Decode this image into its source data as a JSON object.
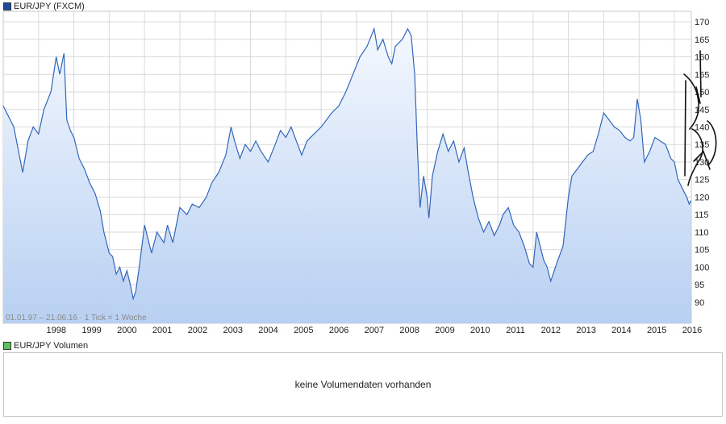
{
  "colors": {
    "series_line": "#3366bb",
    "area_top": "#f4f8fe",
    "area_bottom": "#b8d0f2",
    "grid": "#d9d9d9",
    "price_swatch": "#1f4c9c",
    "volume_swatch": "#5fbf5f"
  },
  "legend": {
    "price": "EUR/JPY (FXCM)",
    "volume": "EUR/JPY Volumen"
  },
  "range_label": "01.01.97 – 21.06.16 · 1 Tick = 1 Woche",
  "volume": {
    "message": "keine Volumendaten vorhanden"
  },
  "chart_data": {
    "type": "area",
    "title": "",
    "xlabel": "",
    "ylabel": "",
    "series": [
      {
        "name": "EUR/JPY (FXCM)",
        "points": [
          [
            1997.0,
            146
          ],
          [
            1997.3,
            140
          ],
          [
            1997.55,
            127
          ],
          [
            1997.7,
            136
          ],
          [
            1997.85,
            140
          ],
          [
            1998.0,
            138
          ],
          [
            1998.15,
            145
          ],
          [
            1998.35,
            150
          ],
          [
            1998.5,
            160
          ],
          [
            1998.6,
            155
          ],
          [
            1998.72,
            161
          ],
          [
            1998.8,
            142
          ],
          [
            1998.9,
            139
          ],
          [
            1999.0,
            137
          ],
          [
            1999.15,
            131
          ],
          [
            1999.3,
            128
          ],
          [
            1999.45,
            124
          ],
          [
            1999.6,
            121
          ],
          [
            1999.75,
            116
          ],
          [
            1999.85,
            110
          ],
          [
            2000.0,
            104
          ],
          [
            2000.1,
            103
          ],
          [
            2000.2,
            98
          ],
          [
            2000.3,
            100
          ],
          [
            2000.4,
            96
          ],
          [
            2000.5,
            99
          ],
          [
            2000.6,
            95
          ],
          [
            2000.68,
            91
          ],
          [
            2000.75,
            93
          ],
          [
            2000.85,
            100
          ],
          [
            2001.0,
            112
          ],
          [
            2001.1,
            108
          ],
          [
            2001.2,
            104
          ],
          [
            2001.35,
            110
          ],
          [
            2001.55,
            107
          ],
          [
            2001.65,
            112
          ],
          [
            2001.8,
            107
          ],
          [
            2002.0,
            117
          ],
          [
            2002.2,
            115
          ],
          [
            2002.35,
            118
          ],
          [
            2002.55,
            117
          ],
          [
            2002.75,
            120
          ],
          [
            2002.9,
            124
          ],
          [
            2003.1,
            127
          ],
          [
            2003.3,
            132
          ],
          [
            2003.45,
            140
          ],
          [
            2003.55,
            136
          ],
          [
            2003.7,
            131
          ],
          [
            2003.85,
            135
          ],
          [
            2004.0,
            133
          ],
          [
            2004.15,
            136
          ],
          [
            2004.3,
            133
          ],
          [
            2004.5,
            130
          ],
          [
            2004.7,
            135
          ],
          [
            2004.85,
            139
          ],
          [
            2005.0,
            137
          ],
          [
            2005.15,
            140
          ],
          [
            2005.3,
            136
          ],
          [
            2005.45,
            132
          ],
          [
            2005.6,
            136
          ],
          [
            2005.8,
            138
          ],
          [
            2006.0,
            140
          ],
          [
            2006.15,
            142
          ],
          [
            2006.3,
            144
          ],
          [
            2006.5,
            146
          ],
          [
            2006.7,
            150
          ],
          [
            2006.9,
            155
          ],
          [
            2007.1,
            160
          ],
          [
            2007.3,
            163
          ],
          [
            2007.5,
            168
          ],
          [
            2007.6,
            162
          ],
          [
            2007.75,
            165
          ],
          [
            2007.9,
            160
          ],
          [
            2008.0,
            158
          ],
          [
            2008.1,
            163
          ],
          [
            2008.3,
            165
          ],
          [
            2008.45,
            168
          ],
          [
            2008.55,
            166
          ],
          [
            2008.65,
            155
          ],
          [
            2008.72,
            135
          ],
          [
            2008.8,
            117
          ],
          [
            2008.9,
            126
          ],
          [
            2009.0,
            120
          ],
          [
            2009.05,
            114
          ],
          [
            2009.15,
            126
          ],
          [
            2009.3,
            133
          ],
          [
            2009.45,
            138
          ],
          [
            2009.6,
            133
          ],
          [
            2009.75,
            136
          ],
          [
            2009.9,
            130
          ],
          [
            2010.05,
            134
          ],
          [
            2010.15,
            128
          ],
          [
            2010.3,
            120
          ],
          [
            2010.45,
            114
          ],
          [
            2010.6,
            110
          ],
          [
            2010.75,
            113
          ],
          [
            2010.9,
            109
          ],
          [
            2011.05,
            112
          ],
          [
            2011.15,
            115
          ],
          [
            2011.3,
            117
          ],
          [
            2011.45,
            112
          ],
          [
            2011.6,
            110
          ],
          [
            2011.75,
            106
          ],
          [
            2011.9,
            101
          ],
          [
            2012.0,
            100
          ],
          [
            2012.1,
            110
          ],
          [
            2012.2,
            106
          ],
          [
            2012.3,
            102
          ],
          [
            2012.4,
            100
          ],
          [
            2012.5,
            96
          ],
          [
            2012.6,
            99
          ],
          [
            2012.7,
            102
          ],
          [
            2012.85,
            106
          ],
          [
            2013.0,
            120
          ],
          [
            2013.1,
            126
          ],
          [
            2013.25,
            128
          ],
          [
            2013.4,
            130
          ],
          [
            2013.55,
            132
          ],
          [
            2013.7,
            133
          ],
          [
            2013.85,
            138
          ],
          [
            2014.0,
            144
          ],
          [
            2014.15,
            142
          ],
          [
            2014.3,
            140
          ],
          [
            2014.45,
            139
          ],
          [
            2014.6,
            137
          ],
          [
            2014.75,
            136
          ],
          [
            2014.85,
            137
          ],
          [
            2014.95,
            148
          ],
          [
            2015.05,
            142
          ],
          [
            2015.15,
            130
          ],
          [
            2015.3,
            133
          ],
          [
            2015.45,
            137
          ],
          [
            2015.6,
            136
          ],
          [
            2015.75,
            135
          ],
          [
            2015.9,
            131
          ],
          [
            2016.0,
            130
          ],
          [
            2016.1,
            125
          ],
          [
            2016.25,
            122
          ],
          [
            2016.35,
            120
          ],
          [
            2016.42,
            118
          ],
          [
            2016.47,
            119
          ]
        ]
      }
    ],
    "xlim": [
      1997.0,
      2016.48
    ],
    "ylim": [
      84,
      173
    ],
    "x_ticks": [
      1998,
      1999,
      2000,
      2001,
      2002,
      2003,
      2004,
      2005,
      2006,
      2007,
      2008,
      2009,
      2010,
      2011,
      2012,
      2013,
      2014,
      2015,
      2016
    ],
    "y_ticks": [
      90,
      95,
      100,
      105,
      110,
      115,
      120,
      125,
      130,
      135,
      140,
      145,
      150,
      155,
      160,
      165,
      170
    ],
    "grid": true,
    "legend_position": "top-left",
    "y_axis_side": "right"
  }
}
